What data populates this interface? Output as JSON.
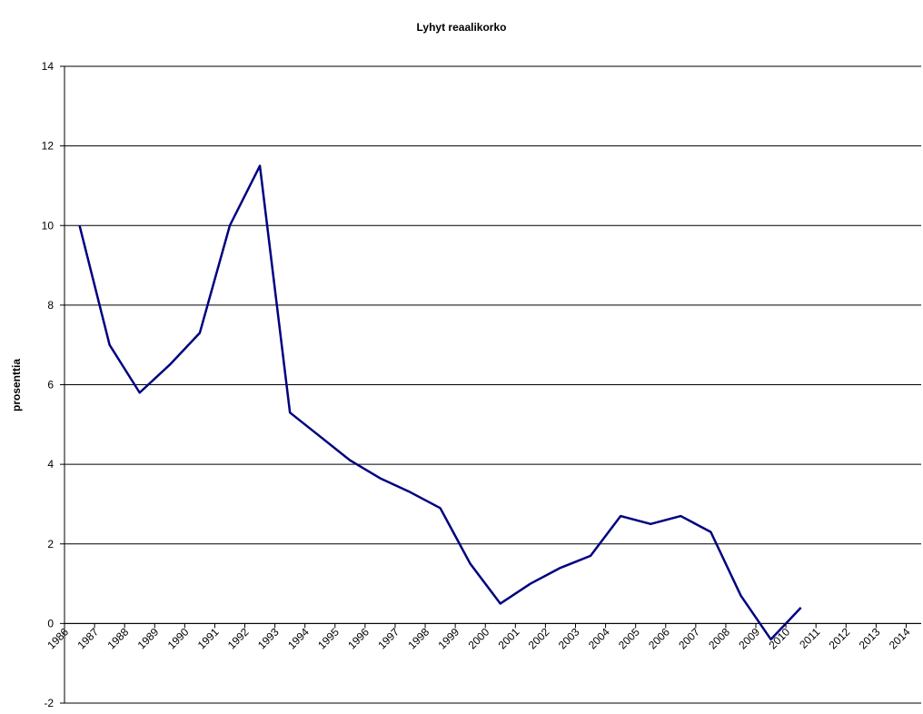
{
  "chart_data": {
    "type": "line",
    "title": "Lyhyt reaalikorko",
    "y_label": "prosenttia",
    "categories": [
      "1986",
      "1987",
      "1988",
      "1989",
      "1990",
      "1991",
      "1992",
      "1993",
      "1994",
      "1995",
      "1996",
      "1997",
      "1998",
      "1999",
      "2000",
      "2001",
      "2002",
      "2003",
      "2004",
      "2005",
      "2006",
      "2007",
      "2008",
      "2009",
      "2010",
      "2011",
      "2012",
      "2013",
      "2014"
    ],
    "series": [
      {
        "name": "Lyhyt reaalikorko",
        "color": "#000080",
        "values": [
          10,
          7,
          5.8,
          6.5,
          7.3,
          10,
          11.5,
          5.3,
          4.7,
          4.1,
          3.65,
          3.3,
          2.9,
          1.5,
          0.5,
          1.0,
          1.4,
          1.7,
          2.7,
          2.5,
          2.7,
          2.3,
          0.7,
          -0.4,
          0.4,
          null,
          null,
          null,
          null
        ]
      }
    ],
    "ylim": [
      -2,
      14
    ],
    "yticks": [
      -2,
      0,
      2,
      4,
      6,
      8,
      10,
      12,
      14
    ],
    "grid": true
  }
}
